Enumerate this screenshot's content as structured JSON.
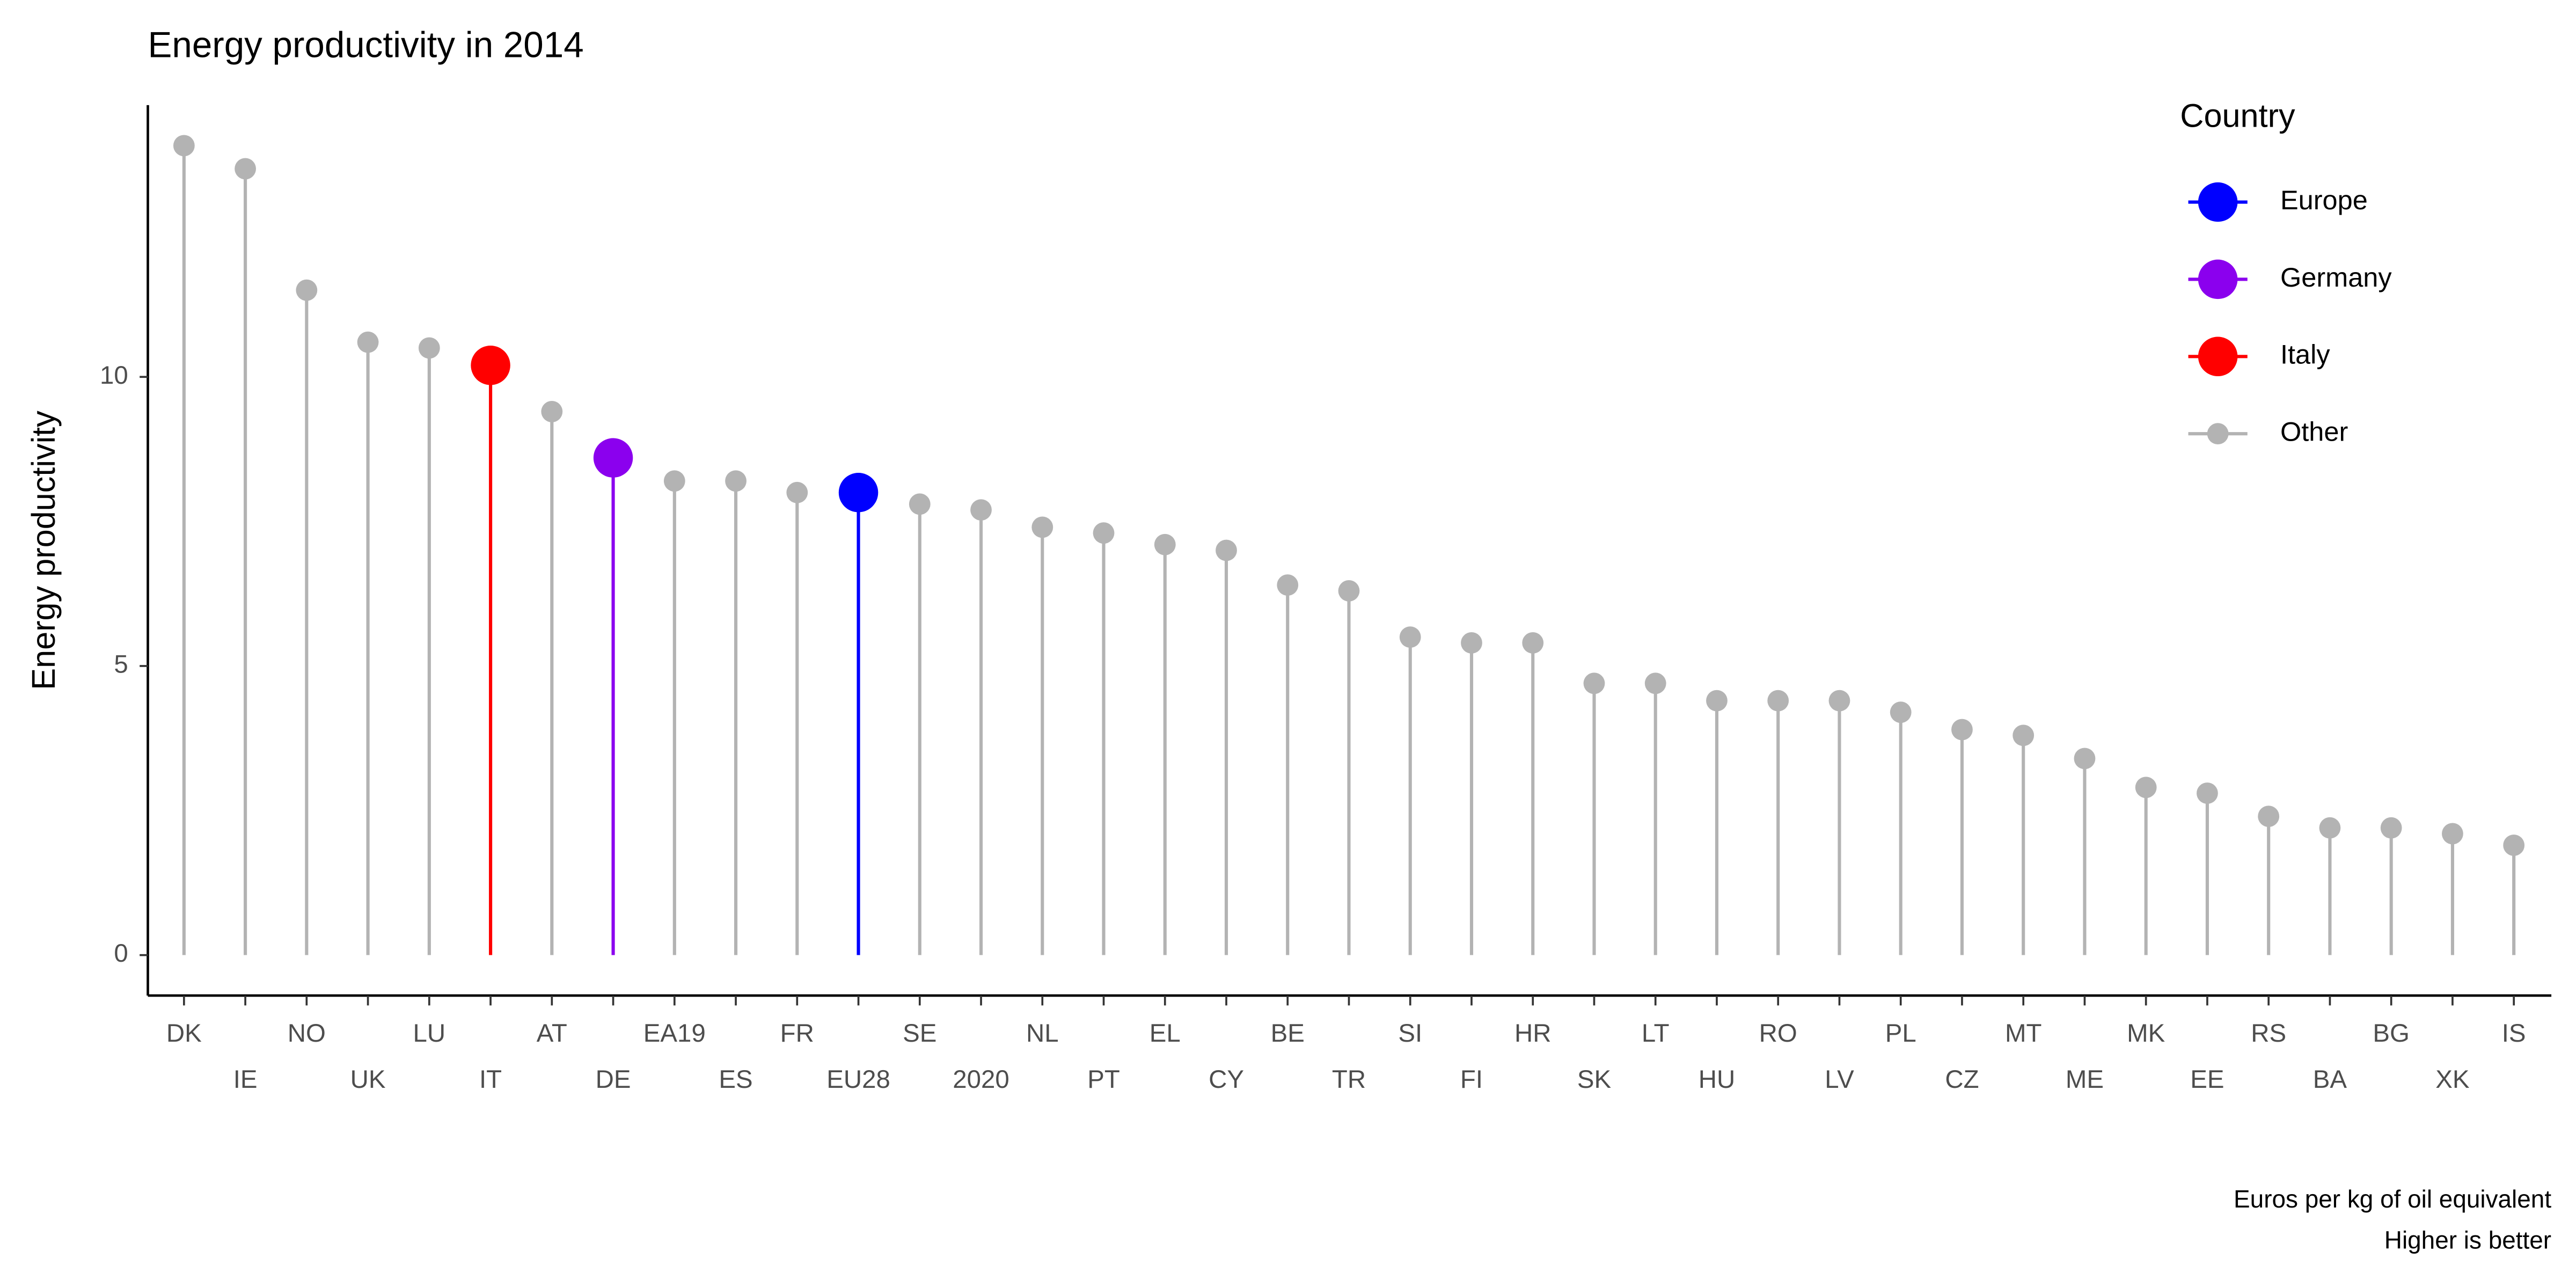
{
  "chart_data": {
    "type": "lollipop",
    "title": "Energy productivity in 2014",
    "y_label": "Energy productivity",
    "caption": [
      "Euros per kg of oil equivalent",
      "Higher is better"
    ],
    "legend_title": "Country",
    "legend_position": "top-right",
    "categories": [
      "DK",
      "IE",
      "NO",
      "UK",
      "LU",
      "IT",
      "AT",
      "DE",
      "EA19",
      "ES",
      "FR",
      "EU28",
      "SE",
      "2020",
      "NL",
      "PT",
      "EL",
      "CY",
      "BE",
      "TR",
      "SI",
      "FI",
      "HR",
      "SK",
      "LT",
      "HU",
      "RO",
      "LV",
      "PL",
      "CZ",
      "MT",
      "ME",
      "MK",
      "EE",
      "RS",
      "BA",
      "BG",
      "XK",
      "IS"
    ],
    "series": [
      {
        "name": "Europe",
        "color": "#0000ff",
        "values": [
          null,
          null,
          null,
          null,
          null,
          null,
          null,
          null,
          null,
          null,
          null,
          8.0,
          null,
          null,
          null,
          null,
          null,
          null,
          null,
          null,
          null,
          null,
          null,
          null,
          null,
          null,
          null,
          null,
          null,
          null,
          null,
          null,
          null,
          null,
          null,
          null,
          null,
          null,
          null
        ]
      },
      {
        "name": "Germany",
        "color": "#8b00ee",
        "values": [
          null,
          null,
          null,
          null,
          null,
          null,
          null,
          8.6,
          null,
          null,
          null,
          null,
          null,
          null,
          null,
          null,
          null,
          null,
          null,
          null,
          null,
          null,
          null,
          null,
          null,
          null,
          null,
          null,
          null,
          null,
          null,
          null,
          null,
          null,
          null,
          null,
          null,
          null,
          null
        ]
      },
      {
        "name": "Italy",
        "color": "#ff0000",
        "values": [
          null,
          null,
          null,
          null,
          null,
          10.2,
          null,
          null,
          null,
          null,
          null,
          null,
          null,
          null,
          null,
          null,
          null,
          null,
          null,
          null,
          null,
          null,
          null,
          null,
          null,
          null,
          null,
          null,
          null,
          null,
          null,
          null,
          null,
          null,
          null,
          null,
          null,
          null,
          null
        ]
      },
      {
        "name": "Other",
        "color": "#b3b3b3",
        "values": [
          14.0,
          13.6,
          11.5,
          10.6,
          10.5,
          null,
          9.4,
          null,
          8.2,
          8.2,
          8.0,
          null,
          7.8,
          7.7,
          7.4,
          7.3,
          7.1,
          7.0,
          6.4,
          6.3,
          5.5,
          5.4,
          5.4,
          4.7,
          4.7,
          4.4,
          4.4,
          4.4,
          4.2,
          3.9,
          3.8,
          3.4,
          2.9,
          2.8,
          2.4,
          2.2,
          2.2,
          2.1,
          1.9
        ]
      }
    ],
    "ylim": [
      -0.7,
      14.7
    ],
    "yticks": [
      0,
      5,
      10
    ]
  }
}
